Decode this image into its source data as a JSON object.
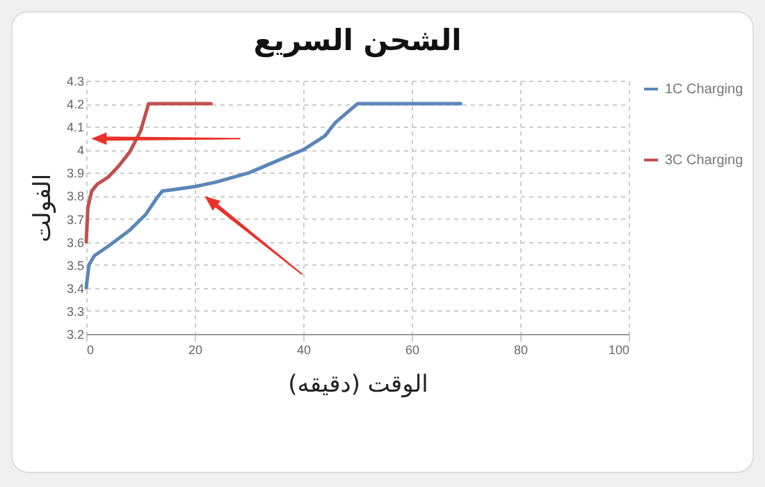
{
  "chart_data": {
    "type": "line",
    "title": "الشحن السريع",
    "xlabel": "الوقت (دقيقه)",
    "ylabel": "الفولت",
    "xlim": [
      0,
      100
    ],
    "xticks": [
      0,
      20,
      40,
      60,
      80,
      100
    ],
    "ylim": [
      3.2,
      4.3
    ],
    "yticks": [
      3.2,
      3.3,
      3.4,
      3.5,
      3.6,
      3.7,
      3.8,
      3.9,
      4,
      4.1,
      4.2,
      4.3
    ],
    "grid": true,
    "legend": "right",
    "marker": "none",
    "line_style": "solid",
    "series": [
      {
        "name": "1C Charging",
        "color": "#5b86b8",
        "x": [
          0,
          0.5,
          1.5,
          4,
          8,
          11,
          13,
          14,
          20,
          24,
          30,
          34,
          40,
          44,
          46,
          50,
          69
        ],
        "values": [
          3.4,
          3.5,
          3.54,
          3.58,
          3.65,
          3.72,
          3.79,
          3.82,
          3.84,
          3.86,
          3.9,
          3.94,
          4.0,
          4.06,
          4.12,
          4.2,
          4.2
        ]
      },
      {
        "name": "3C Charging",
        "color": "#c0504d",
        "x": [
          0,
          0.3,
          1,
          2,
          4,
          6,
          8,
          10,
          11.5,
          23
        ],
        "values": [
          3.6,
          3.75,
          3.82,
          3.85,
          3.88,
          3.93,
          3.99,
          4.08,
          4.2,
          4.2
        ]
      }
    ]
  }
}
